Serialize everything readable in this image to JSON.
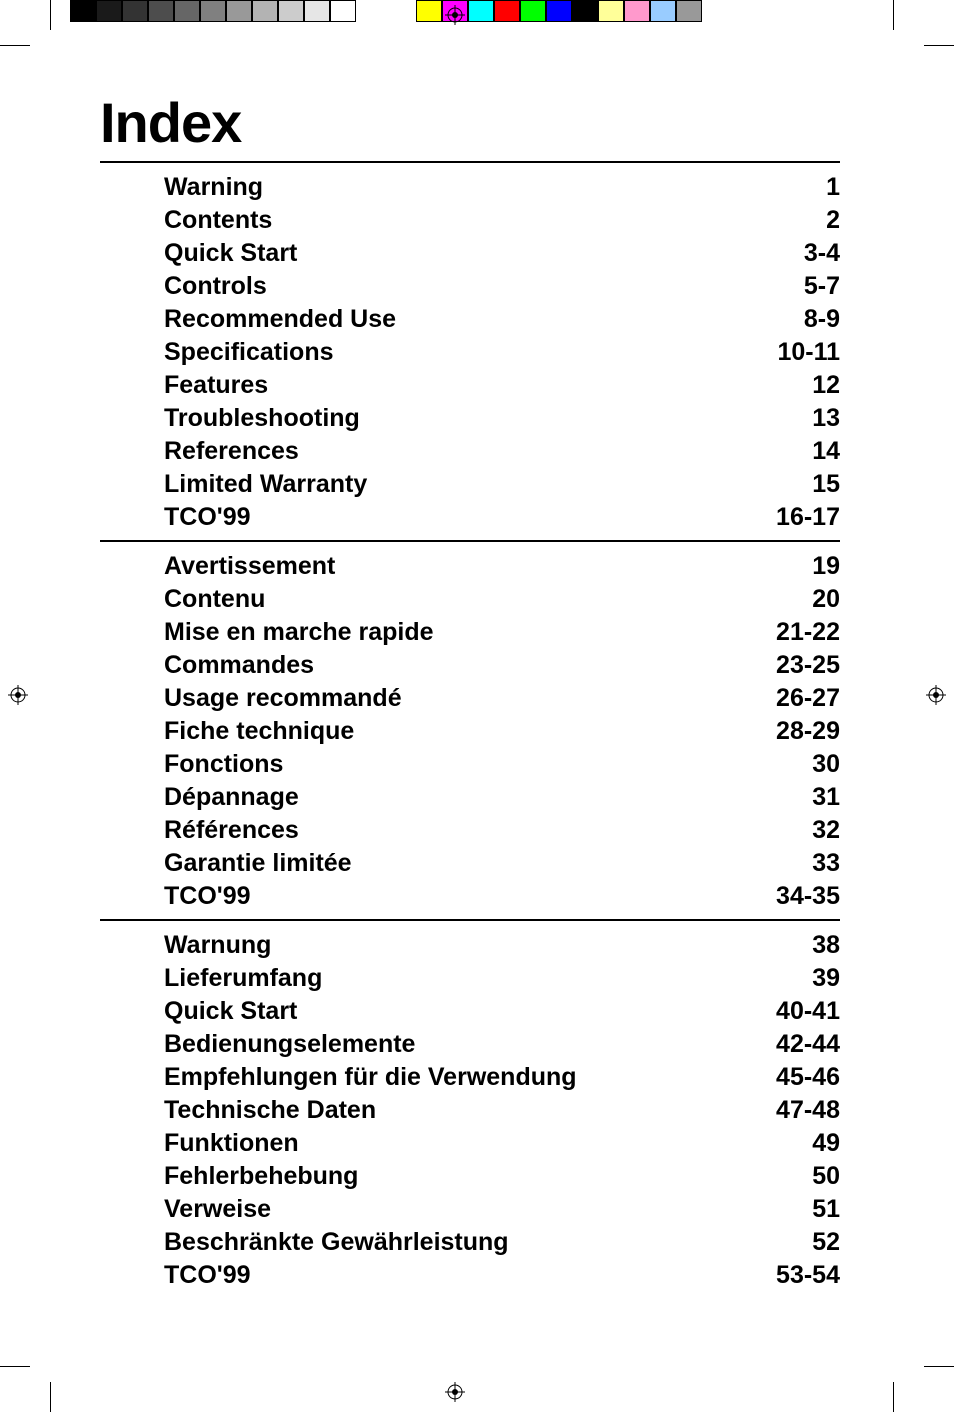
{
  "title": "Index",
  "gray_swatches": [
    "#000000",
    "#1a1a1a",
    "#333333",
    "#4d4d4d",
    "#666666",
    "#808080",
    "#999999",
    "#b3b3b3",
    "#cccccc",
    "#e6e6e6",
    "#ffffff"
  ],
  "color_swatches": [
    "#ffff00",
    "#ff00ff",
    "#00ffff",
    "#ff0000",
    "#00ff00",
    "#0000ff",
    "#000000",
    "#ffff99",
    "#ff99cc",
    "#99ccff",
    "#999999"
  ],
  "sections": [
    {
      "entries": [
        {
          "label": "Warning",
          "page": "1"
        },
        {
          "label": "Contents",
          "page": "2"
        },
        {
          "label": "Quick Start",
          "page": "3-4"
        },
        {
          "label": "Controls",
          "page": "5-7"
        },
        {
          "label": "Recommended Use",
          "page": "8-9"
        },
        {
          "label": "Specifications",
          "page": "10-11"
        },
        {
          "label": "Features",
          "page": "12"
        },
        {
          "label": "Troubleshooting",
          "page": "13"
        },
        {
          "label": "References",
          "page": "14"
        },
        {
          "label": "Limited Warranty",
          "page": "15"
        },
        {
          "label": "TCO'99",
          "page": "16-17"
        }
      ]
    },
    {
      "entries": [
        {
          "label": "Avertissement",
          "page": "19"
        },
        {
          "label": "Contenu",
          "page": "20"
        },
        {
          "label": "Mise en marche rapide",
          "page": "21-22"
        },
        {
          "label": "Commandes",
          "page": "23-25"
        },
        {
          "label": "Usage recommandé",
          "page": "26-27"
        },
        {
          "label": "Fiche technique",
          "page": "28-29"
        },
        {
          "label": "Fonctions",
          "page": "30"
        },
        {
          "label": "Dépannage",
          "page": "31"
        },
        {
          "label": "Références",
          "page": "32"
        },
        {
          "label": "Garantie limitée",
          "page": "33"
        },
        {
          "label": "TCO'99",
          "page": "34-35"
        }
      ]
    },
    {
      "entries": [
        {
          "label": "Warnung",
          "page": "38"
        },
        {
          "label": "Lieferumfang",
          "page": "39"
        },
        {
          "label": "Quick Start",
          "page": "40-41"
        },
        {
          "label": "Bedienungselemente",
          "page": "42-44"
        },
        {
          "label": "Empfehlungen für die Verwendung",
          "page": "45-46"
        },
        {
          "label": "Technische Daten",
          "page": "47-48"
        },
        {
          "label": "Funktionen",
          "page": "49"
        },
        {
          "label": "Fehlerbehebung",
          "page": "50"
        },
        {
          "label": "Verweise",
          "page": "51"
        },
        {
          "label": "Beschränkte Gewährleistung",
          "page": "52"
        },
        {
          "label": "TCO'99",
          "page": "53-54"
        }
      ]
    }
  ]
}
